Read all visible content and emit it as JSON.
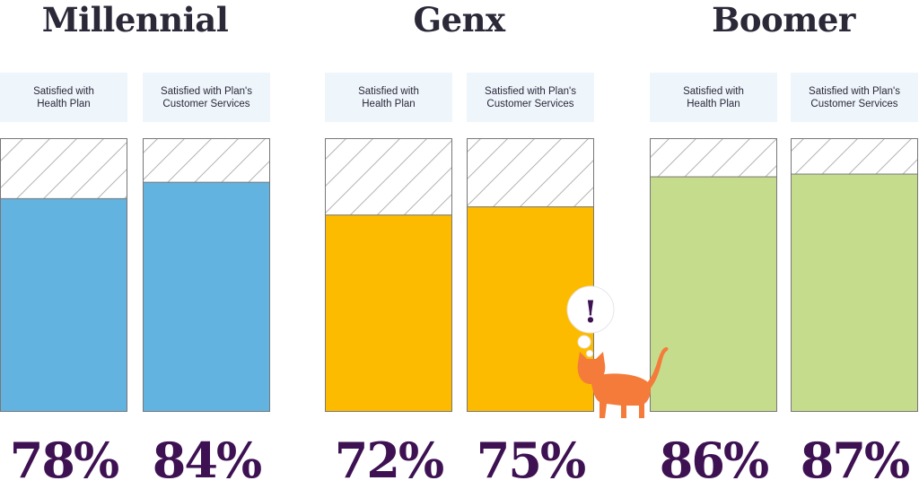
{
  "chart_data": {
    "type": "bar",
    "ylim": [
      0,
      100
    ],
    "groups": [
      {
        "name": "Millennial",
        "color": "#62b3e0",
        "bars": [
          {
            "label_lines": [
              "Satisfied with",
              "Health Plan"
            ],
            "value": 78,
            "display": "78%"
          },
          {
            "label_lines": [
              "Satisfied with Plan's",
              "Customer Services"
            ],
            "value": 84,
            "display": "84%"
          }
        ]
      },
      {
        "name": "Genx",
        "color": "#fdbb00",
        "bars": [
          {
            "label_lines": [
              "Satisfied with",
              "Health Plan"
            ],
            "value": 72,
            "display": "72%"
          },
          {
            "label_lines": [
              "Satisfied with Plan's",
              "Customer Services"
            ],
            "value": 75,
            "display": "75%"
          }
        ]
      },
      {
        "name": "Boomer",
        "color": "#c6dc8d",
        "bars": [
          {
            "label_lines": [
              "Satisfied with",
              "Health Plan"
            ],
            "value": 86,
            "display": "86%"
          },
          {
            "label_lines": [
              "Satisfied with Plan's",
              "Customer Services"
            ],
            "value": 87,
            "display": "87%"
          }
        ]
      }
    ]
  },
  "colors": {
    "title": "#2b2838",
    "percent": "#3d1152",
    "label_bg": "#eef6fc",
    "hatch": "#b5b5b5",
    "border": "#777777",
    "cat": "#f47b3a",
    "cat_exclaim": "#3d1152"
  },
  "decoration": {
    "icon": "cat-icon",
    "bubble": "thought-bubble-icon",
    "mark": "!"
  }
}
